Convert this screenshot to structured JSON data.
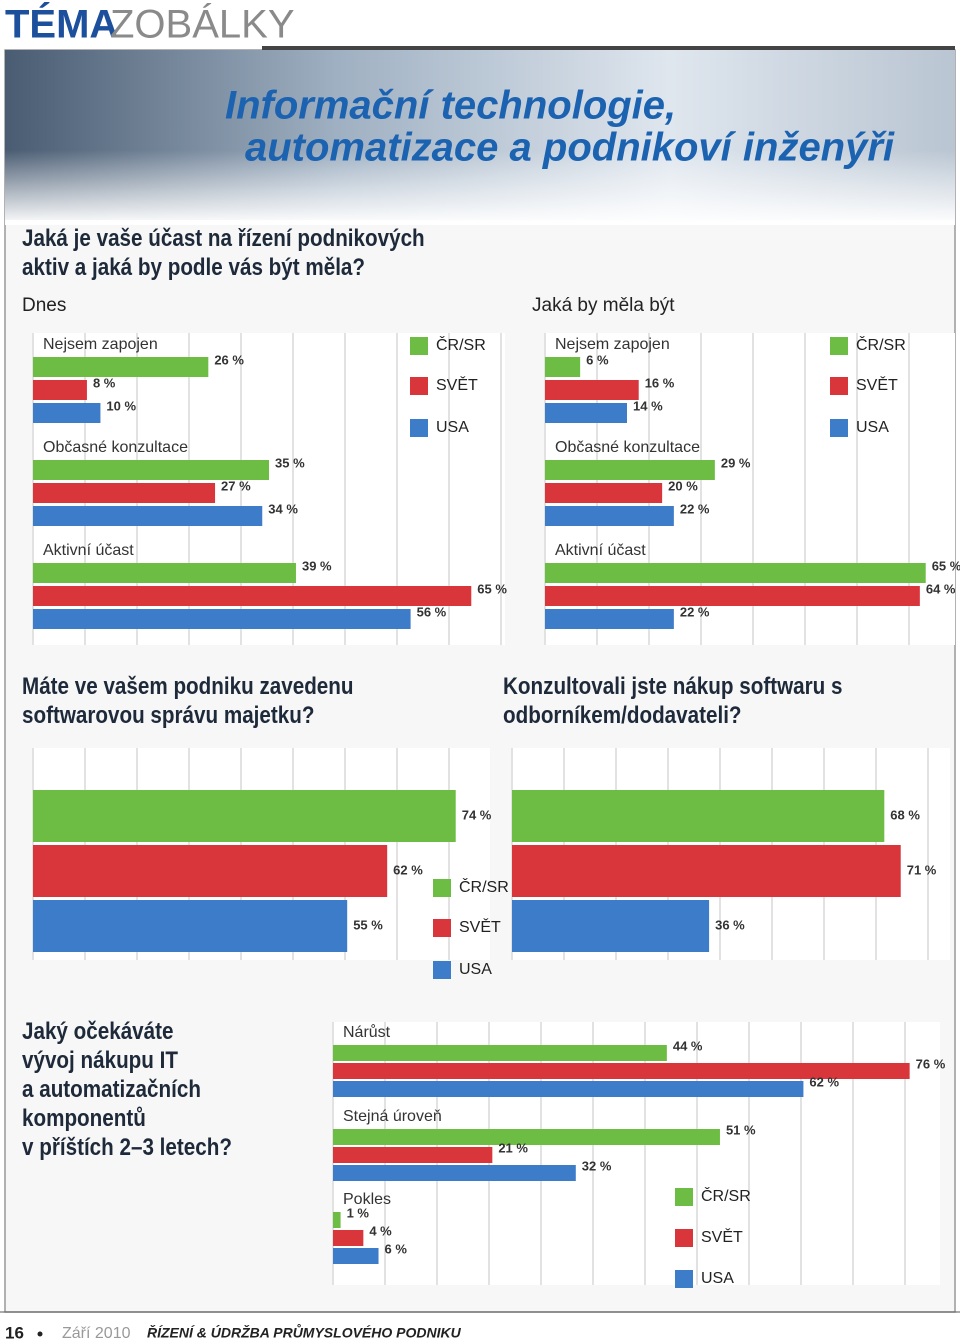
{
  "header": {
    "brand": "TÉMA",
    "section": "ZOBÁLKY",
    "title": [
      "Informační technologie,",
      "automatizace a podnikoví inženýři"
    ]
  },
  "chart_data": [
    {
      "type": "bar",
      "orientation": "horizontal",
      "title": [
        "Jaká je vaše účast na řízení podnikových",
        "aktiv a jaká by podle vás být měla?"
      ],
      "categories": [
        "Nejsem zapojen",
        "Občasné konzultace",
        "Aktivní účast"
      ],
      "xlim": [
        0,
        70
      ],
      "panels": [
        {
          "subtitle": "Dnes",
          "series": [
            {
              "name": "ČR/SR",
              "color": "#6dbd45",
              "values": [
                26,
                35,
                39
              ],
              "value_labels": [
                "26 %",
                "35 %",
                "39 %"
              ]
            },
            {
              "name": "SVĚT",
              "color": "#d9363c",
              "values": [
                8,
                27,
                65
              ],
              "value_labels": [
                "8 %",
                "27 %",
                "65 %"
              ]
            },
            {
              "name": "USA",
              "color": "#3d7cc9",
              "values": [
                10,
                34,
                56
              ],
              "value_labels": [
                "10 %",
                "34 %",
                "56 %"
              ]
            }
          ]
        },
        {
          "subtitle": "Jaká by měla být",
          "series": [
            {
              "name": "ČR/SR",
              "color": "#6dbd45",
              "values": [
                6,
                29,
                65
              ],
              "value_labels": [
                "6 %",
                "29 %",
                "65 %"
              ]
            },
            {
              "name": "SVĚT",
              "color": "#d9363c",
              "values": [
                16,
                20,
                64
              ],
              "value_labels": [
                "16 %",
                "20 %",
                "64 %"
              ]
            },
            {
              "name": "USA",
              "color": "#3d7cc9",
              "values": [
                14,
                22,
                22
              ],
              "value_labels": [
                "14 %",
                "22 %",
                "22 %"
              ]
            }
          ]
        }
      ]
    },
    {
      "type": "bar",
      "orientation": "horizontal",
      "categories": [
        "Máte ve vašem podniku zavedenu softwarovou správu majetku?",
        "Konzultovali jste nákup softwaru s odborníkem/dodavateli?"
      ],
      "xlim": [
        0,
        80
      ],
      "series": [
        {
          "name": "ČR/SR",
          "color": "#6dbd45",
          "values": [
            74,
            68
          ],
          "value_labels": [
            "74 %",
            "68 %"
          ]
        },
        {
          "name": "SVĚT",
          "color": "#d9363c",
          "values": [
            62,
            71
          ],
          "value_labels": [
            "62 %",
            "71 %"
          ]
        },
        {
          "name": "USA",
          "color": "#3d7cc9",
          "values": [
            55,
            36
          ],
          "value_labels": [
            "55 %",
            "36 %"
          ]
        }
      ]
    },
    {
      "type": "bar",
      "orientation": "horizontal",
      "title": [
        "Jaký očekáváte",
        "vývoj nákupu IT",
        "a automatizačních",
        "komponentů",
        "v příštích 2–3 letech?"
      ],
      "categories": [
        "Nárůst",
        "Stejná úroveň",
        "Pokles"
      ],
      "xlim": [
        0,
        80
      ],
      "series": [
        {
          "name": "ČR/SR",
          "color": "#6dbd45",
          "values": [
            44,
            51,
            1
          ],
          "value_labels": [
            "44 %",
            "51 %",
            "1 %"
          ]
        },
        {
          "name": "SVĚT",
          "color": "#d9363c",
          "values": [
            76,
            21,
            4
          ],
          "value_labels": [
            "76 %",
            "21 %",
            "4 %"
          ]
        },
        {
          "name": "USA",
          "color": "#3d7cc9",
          "values": [
            62,
            32,
            6
          ],
          "value_labels": [
            "62 %",
            "32 %",
            "6 %"
          ]
        }
      ]
    }
  ],
  "footer": {
    "page": "16",
    "date": "Září 2010",
    "magazine": "ŘÍZENÍ & ÚDRŽBA PRŮMYSLOVÉHO PODNIKU"
  }
}
